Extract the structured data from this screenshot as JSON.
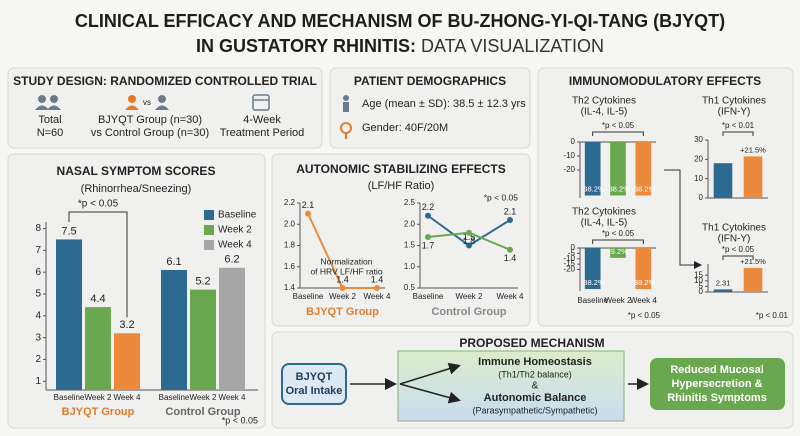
{
  "header": {
    "title_line1": "CLINICAL EFFICACY AND MECHANISM OF BU-ZHONG-YI-QI-TANG (BJYQT)",
    "title_line2_bold": "IN GUSTATORY RHINITIS:",
    "title_line2_light": "DATA VISUALIZATION"
  },
  "study_design": {
    "title": "STUDY DESIGN: RANDOMIZED CONTROLLED TRIAL",
    "vs_icon": "vs",
    "items": [
      [
        "Total",
        "N=60"
      ],
      [
        "BJYQT Group (n=30)",
        "vs Control Group (n=30)"
      ],
      [
        "4-Week",
        "Treatment Period"
      ]
    ]
  },
  "demographics": {
    "title": "PATIENT DEMOGRAPHICS",
    "age": "Age (mean ± SD): 38.5 ± 12.3 yrs",
    "gender": "Gender: 40F/20M"
  },
  "chart_data": [
    {
      "type": "bar",
      "title": "NASAL SYMPTOM SCORES",
      "subtitle": "(Rhinorrhea/Sneezing)",
      "categories": [
        "BJYQT Group",
        "Control Group"
      ],
      "category_colors": [
        "#e07b2e",
        "#666666"
      ],
      "series": [
        {
          "name": "Baseline",
          "color": "#2d6a91",
          "values": [
            7.5,
            6.1
          ]
        },
        {
          "name": "Week 2",
          "color": "#6aa84f",
          "values": [
            4.4,
            5.2
          ]
        },
        {
          "name": "Week 4",
          "color": "#a6a6a6",
          "colors": [
            "#ec8a3c",
            "#a6a6a6"
          ],
          "values": [
            3.2,
            6.2
          ]
        }
      ],
      "ylim": [
        0.6,
        8.3
      ],
      "yticks": [
        1,
        2,
        3,
        4,
        5,
        6,
        7,
        8
      ],
      "legend": "upper right",
      "annotation": "*p < 0.05",
      "footnote": "*p < 0.05"
    },
    {
      "type": "line",
      "title": "AUTONOMIC STABILIZING EFFECTS",
      "subtitle": "(LF/HF Ratio)",
      "panels": [
        {
          "label": "BJYQT Group",
          "label_color": "#e07b2e",
          "categories": [
            "Baseline",
            "Week 2",
            "Week 4"
          ],
          "series": [
            {
              "color": "#ec8a3c",
              "values": [
                2.1,
                1.4,
                1.4
              ]
            }
          ],
          "ylim": [
            1.4,
            2.2
          ],
          "yticks": [
            1.4,
            1.6,
            1.8,
            {
              "value": 2,
              "label": "2.0"
            },
            2.2
          ],
          "annotation": [
            "Normalization",
            "of HRV LF/HF ratio"
          ]
        },
        {
          "label": "Control Group",
          "label_color": "#888888",
          "categories": [
            "Baseline",
            "Week 2",
            "Week 4"
          ],
          "series": [
            {
              "color": "#2d6a91",
              "values": [
                2.2,
                1.5,
                2.1
              ]
            },
            {
              "color": "#6aa84f",
              "values": [
                1.7,
                1.8,
                1.4
              ]
            }
          ],
          "ylim": [
            0.5,
            2.5
          ],
          "yticks": [
            0.5,
            {
              "value": 1,
              "label": "1.0"
            },
            1.5,
            {
              "value": 2,
              "label": "2.0"
            },
            2.5
          ],
          "annotation": [
            "*p < 0.05"
          ]
        }
      ]
    },
    {
      "type": "bar",
      "title": "IMMUNOMODULATORY EFFECTS",
      "panels": [
        {
          "title": [
            "Th2 Cytokines",
            "(IL-4, IL-5)"
          ],
          "categories": [
            null,
            null,
            null
          ],
          "values": [
            -38.2,
            -38.2,
            -38.2
          ],
          "value_labels": [
            "-38.2%",
            "-38.2%",
            "-38.2%"
          ],
          "colors": [
            "#2d6a91",
            "#6aa84f",
            "#ec8a3c"
          ],
          "ylim": [
            -40,
            0
          ],
          "yticks": [
            0,
            -10,
            -20
          ],
          "annotation": "*p < 0.05"
        },
        {
          "title": [
            "Th1 Cytokines",
            "(IFN-Y)"
          ],
          "categories": [
            null,
            null
          ],
          "values": [
            18,
            21.5
          ],
          "value_labels": [
            null,
            "+21.5%"
          ],
          "colors": [
            "#2d6a91",
            "#ec8a3c"
          ],
          "ylim": [
            0,
            30
          ],
          "yticks": [
            0,
            10,
            20,
            30
          ],
          "annotation": "*p < 0.01"
        },
        {
          "title": [
            "Th2 Cytokines",
            "(IL-4, IL-5)"
          ],
          "categories": [
            "Baseline",
            "Week 2",
            "Week 4"
          ],
          "values": [
            -38.2,
            -9.2,
            -38.2
          ],
          "value_labels": [
            "-38.2%",
            "-9.2%",
            "-38.2%"
          ],
          "colors": [
            "#2d6a91",
            "#6aa84f",
            "#ec8a3c"
          ],
          "ylim": [
            -40,
            0
          ],
          "yticks": [
            0,
            -5,
            -10,
            -15,
            -20
          ],
          "annotation": "*p < 0.05",
          "footnote": "*p < 0.05"
        },
        {
          "title": [
            "Th1 Cytokines",
            "(IFN-Y)"
          ],
          "categories": [
            null,
            null
          ],
          "values": [
            2.31,
            21.5
          ],
          "value_labels": [
            "2.31",
            "+21.5%"
          ],
          "colors": [
            "#2d6a91",
            "#ec8a3c"
          ],
          "ylim": [
            0,
            25
          ],
          "yticks": [
            0,
            5,
            10,
            15
          ],
          "annotation": "*p < 0.05",
          "footnote": "*p < 0.01"
        }
      ]
    }
  ],
  "mechanism": {
    "title": "PROPOSED MECHANISM",
    "input": [
      "BJYQT",
      "Oral Intake"
    ],
    "middle": [
      "Immune Homeostasis",
      "(Th1/Th2 balance)",
      "&",
      "Autonomic Balance",
      "(Parasympathetic/Sympathetic)"
    ],
    "output": [
      "Reduced Mucosal",
      "Hypersecretion &",
      "Rhinitis Symptoms"
    ]
  }
}
